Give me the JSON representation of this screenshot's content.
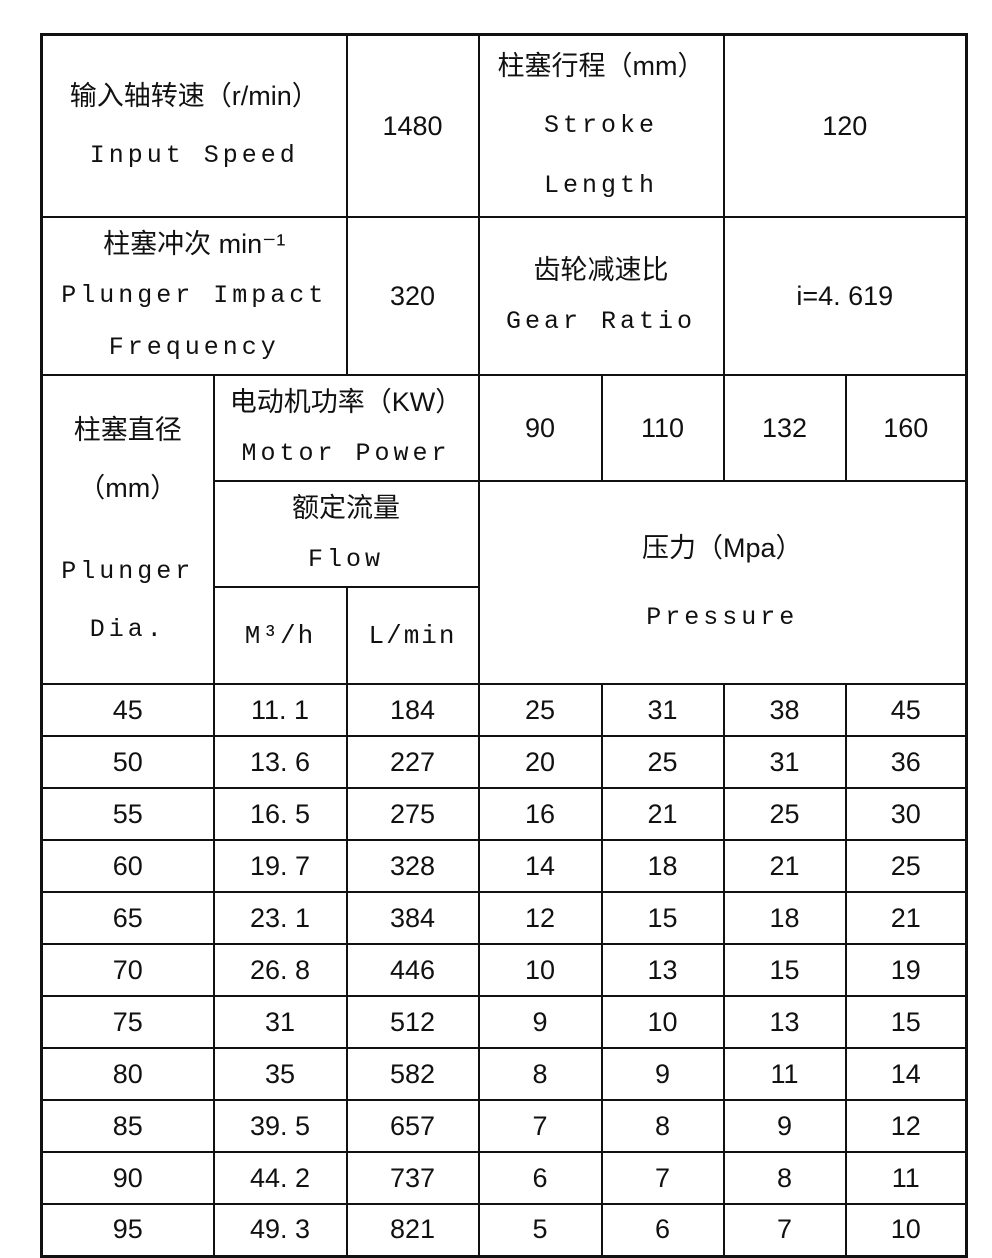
{
  "page": {
    "background": "#ffffff",
    "line_color": "#111111"
  },
  "table": {
    "header": {
      "input_speed": {
        "zh": "输入轴转速（r/min）",
        "en": "Input Speed",
        "value": "1480"
      },
      "stroke_length": {
        "zh": "柱塞行程（mm）",
        "en_line1": "Stroke",
        "en_line2": "Length",
        "value": "120"
      },
      "plunger_impact": {
        "zh": "柱塞冲次 min⁻¹",
        "en_line1": "Plunger Impact",
        "en_line2": "Frequency",
        "value": "320"
      },
      "gear_ratio": {
        "zh": "齿轮减速比",
        "en": "Gear Ratio",
        "value": "i=4. 619"
      },
      "plunger_dia": {
        "zh_line1": "柱塞直径",
        "zh_line2": "（mm）",
        "en_line1": "Plunger",
        "en_line2": "Dia."
      },
      "motor_power": {
        "zh": "电动机功率（KW）",
        "en": "Motor Power",
        "values": [
          "90",
          "110",
          "132",
          "160"
        ]
      },
      "flow": {
        "zh": "额定流量",
        "en": "Flow",
        "unit_m3h": "M³/h",
        "unit_lmin": "L/min"
      },
      "pressure": {
        "zh": "压力（Mpa）",
        "en": "Pressure"
      }
    },
    "columns": [
      "plunger-dia",
      "flow-m3h",
      "flow-lmin",
      "pressure-90kw",
      "pressure-110kw",
      "pressure-132kw",
      "pressure-160kw"
    ],
    "rows": [
      [
        "45",
        "11. 1",
        "184",
        "25",
        "31",
        "38",
        "45"
      ],
      [
        "50",
        "13. 6",
        "227",
        "20",
        "25",
        "31",
        "36"
      ],
      [
        "55",
        "16. 5",
        "275",
        "16",
        "21",
        "25",
        "30"
      ],
      [
        "60",
        "19. 7",
        "328",
        "14",
        "18",
        "21",
        "25"
      ],
      [
        "65",
        "23. 1",
        "384",
        "12",
        "15",
        "18",
        "21"
      ],
      [
        "70",
        "26. 8",
        "446",
        "10",
        "13",
        "15",
        "19"
      ],
      [
        "75",
        "31",
        "512",
        "9",
        "10",
        "13",
        "15"
      ],
      [
        "80",
        "35",
        "582",
        "8",
        "9",
        "11",
        "14"
      ],
      [
        "85",
        "39. 5",
        "657",
        "7",
        "8",
        "9",
        "12"
      ],
      [
        "90",
        "44. 2",
        "737",
        "6",
        "7",
        "8",
        "11"
      ],
      [
        "95",
        "49. 3",
        "821",
        "5",
        "6",
        "7",
        "10"
      ]
    ]
  }
}
